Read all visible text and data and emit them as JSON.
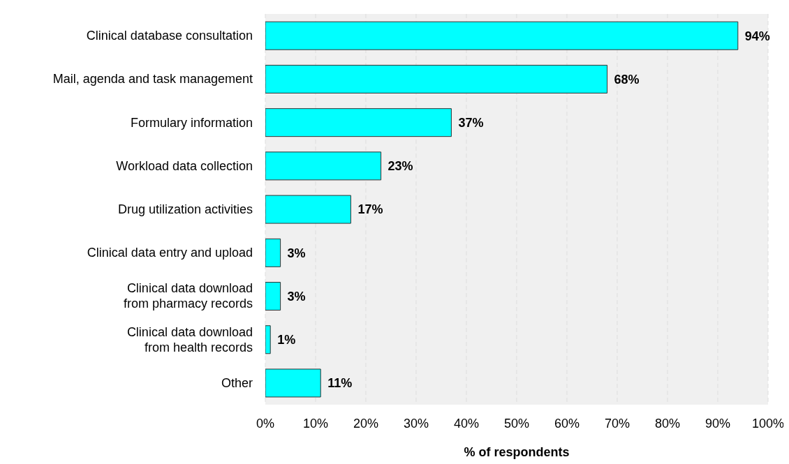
{
  "chart_data": {
    "type": "bar",
    "orientation": "horizontal",
    "categories": [
      "Clinical database consultation",
      "Mail, agenda and task management",
      "Formulary information",
      "Workload data collection",
      "Drug utilization activities",
      "Clinical data entry and upload",
      "Clinical data download\nfrom pharmacy records",
      "Clinical data download\nfrom health records",
      "Other"
    ],
    "values": [
      94,
      68,
      37,
      23,
      17,
      3,
      3,
      1,
      11
    ],
    "value_labels": [
      "94%",
      "68%",
      "37%",
      "23%",
      "17%",
      "3%",
      "3%",
      "1%",
      "11%"
    ],
    "color": "#00ffff",
    "xlim": [
      0,
      100
    ],
    "xticks": [
      {
        "value": 0,
        "label": "0%"
      },
      {
        "value": 10,
        "label": "10%"
      },
      {
        "value": 20,
        "label": "20%"
      },
      {
        "value": 30,
        "label": "30%"
      },
      {
        "value": 40,
        "label": "40%"
      },
      {
        "value": 50,
        "label": "50%"
      },
      {
        "value": 60,
        "label": "60%"
      },
      {
        "value": 70,
        "label": "70%"
      },
      {
        "value": 80,
        "label": "80%"
      },
      {
        "value": 90,
        "label": "90%"
      },
      {
        "value": 100,
        "label": "100%"
      }
    ],
    "xlabel": "% of respondents",
    "grid": "x"
  }
}
